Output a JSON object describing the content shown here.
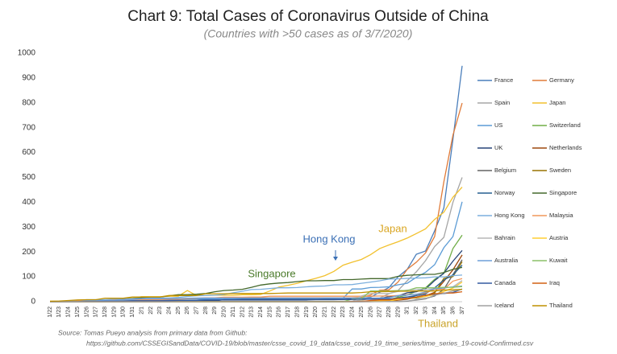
{
  "chart_data": {
    "type": "line",
    "title": "Chart 9: Total Cases of Coronavirus Outside of China",
    "subtitle": "(Countries with >50 cases as of 3/7/2020)",
    "source": [
      "Source: Tomas Pueyo analysis from primary data from Github:",
      "https://github.com/CSSEGISandData/COVID-19/blob/master/csse_covid_19_data/csse_covid_19_time_series/time_series_19-covid-Confirmed.csv"
    ],
    "annotations": [
      {
        "text": "Japan",
        "color": "#d9a520"
      },
      {
        "text": "Hong Kong",
        "color": "#3a6fb5"
      },
      {
        "text": "Singapore",
        "color": "#4a7a2a"
      },
      {
        "text": "Thailand",
        "color": "#c9a227"
      }
    ],
    "ylim": [
      0,
      1000
    ],
    "yticks": [
      0,
      100,
      200,
      300,
      400,
      500,
      600,
      700,
      800,
      900,
      1000
    ],
    "grid": false,
    "categories": [
      "1/22",
      "1/23",
      "1/24",
      "1/25",
      "1/26",
      "1/27",
      "1/28",
      "1/29",
      "1/30",
      "1/31",
      "2/1",
      "2/2",
      "2/3",
      "2/4",
      "2/5",
      "2/6",
      "2/7",
      "2/8",
      "2/9",
      "2/10",
      "2/11",
      "2/12",
      "2/13",
      "2/14",
      "2/15",
      "2/16",
      "2/17",
      "2/18",
      "2/19",
      "2/20",
      "2/21",
      "2/22",
      "2/23",
      "2/24",
      "2/25",
      "2/26",
      "2/27",
      "2/28",
      "2/29",
      "3/1",
      "3/2",
      "3/3",
      "3/4",
      "3/5",
      "3/6",
      "3/7"
    ],
    "series": [
      {
        "name": "France",
        "color": "#4a7ebb",
        "values": [
          0,
          0,
          2,
          3,
          3,
          3,
          4,
          5,
          5,
          5,
          6,
          6,
          6,
          6,
          6,
          6,
          6,
          11,
          11,
          11,
          11,
          11,
          11,
          11,
          12,
          12,
          12,
          12,
          12,
          12,
          12,
          12,
          12,
          12,
          14,
          18,
          38,
          57,
          100,
          130,
          191,
          204,
          285,
          377,
          653,
          949
        ]
      },
      {
        "name": "Germany",
        "color": "#e07b39",
        "values": [
          0,
          0,
          0,
          0,
          0,
          1,
          4,
          4,
          4,
          5,
          8,
          10,
          12,
          12,
          12,
          12,
          13,
          13,
          14,
          14,
          16,
          16,
          16,
          16,
          16,
          16,
          16,
          16,
          16,
          16,
          16,
          16,
          16,
          16,
          17,
          27,
          46,
          48,
          79,
          130,
          159,
          196,
          262,
          482,
          670,
          799
        ]
      },
      {
        "name": "Spain",
        "color": "#a5a5a5",
        "values": [
          0,
          0,
          0,
          0,
          0,
          0,
          0,
          0,
          0,
          0,
          1,
          1,
          1,
          1,
          1,
          1,
          1,
          1,
          1,
          2,
          2,
          2,
          2,
          2,
          2,
          2,
          2,
          2,
          2,
          2,
          2,
          2,
          2,
          2,
          6,
          13,
          15,
          32,
          45,
          84,
          120,
          165,
          222,
          259,
          400,
          500
        ]
      },
      {
        "name": "Japan",
        "color": "#f2c12e",
        "values": [
          2,
          1,
          2,
          2,
          4,
          4,
          7,
          7,
          11,
          15,
          20,
          20,
          20,
          22,
          22,
          45,
          25,
          25,
          26,
          26,
          26,
          28,
          28,
          29,
          43,
          59,
          66,
          74,
          84,
          94,
          105,
          122,
          147,
          159,
          170,
          189,
          214,
          228,
          241,
          256,
          274,
          293,
          331,
          360,
          420,
          461
        ]
      },
      {
        "name": "US",
        "color": "#5b9bd5",
        "values": [
          1,
          1,
          2,
          2,
          5,
          5,
          5,
          5,
          5,
          7,
          8,
          8,
          11,
          11,
          11,
          11,
          11,
          11,
          11,
          11,
          12,
          12,
          13,
          13,
          13,
          13,
          13,
          13,
          13,
          13,
          15,
          15,
          15,
          51,
          51,
          57,
          58,
          60,
          68,
          74,
          98,
          118,
          149,
          217,
          262,
          402
        ]
      },
      {
        "name": "Switzerland",
        "color": "#70ad47",
        "values": [
          0,
          0,
          0,
          0,
          0,
          0,
          0,
          0,
          0,
          0,
          0,
          0,
          0,
          0,
          0,
          0,
          0,
          0,
          0,
          0,
          0,
          0,
          0,
          0,
          0,
          0,
          0,
          0,
          0,
          0,
          0,
          0,
          0,
          0,
          1,
          1,
          8,
          8,
          18,
          27,
          42,
          56,
          90,
          114,
          214,
          268
        ]
      },
      {
        "name": "UK",
        "color": "#264478",
        "values": [
          0,
          0,
          0,
          0,
          0,
          0,
          0,
          0,
          0,
          2,
          2,
          2,
          2,
          2,
          2,
          3,
          3,
          3,
          3,
          8,
          8,
          9,
          9,
          9,
          9,
          9,
          9,
          9,
          9,
          9,
          9,
          9,
          9,
          13,
          13,
          13,
          13,
          20,
          23,
          36,
          40,
          51,
          85,
          115,
          163,
          206
        ]
      },
      {
        "name": "Netherlands",
        "color": "#9e480e",
        "values": [
          0,
          0,
          0,
          0,
          0,
          0,
          0,
          0,
          0,
          0,
          0,
          0,
          0,
          0,
          0,
          0,
          0,
          0,
          0,
          0,
          0,
          0,
          0,
          0,
          0,
          0,
          0,
          0,
          0,
          0,
          0,
          0,
          0,
          0,
          0,
          0,
          1,
          1,
          6,
          10,
          18,
          24,
          38,
          82,
          128,
          188
        ]
      },
      {
        "name": "Belgium",
        "color": "#636363",
        "values": [
          0,
          0,
          0,
          0,
          0,
          0,
          0,
          0,
          0,
          0,
          0,
          0,
          0,
          1,
          1,
          1,
          1,
          1,
          1,
          1,
          1,
          1,
          1,
          1,
          1,
          1,
          1,
          1,
          1,
          1,
          1,
          1,
          1,
          1,
          1,
          1,
          1,
          1,
          1,
          2,
          8,
          13,
          23,
          50,
          109,
          169
        ]
      },
      {
        "name": "Sweden",
        "color": "#997300",
        "values": [
          0,
          0,
          0,
          0,
          0,
          0,
          0,
          0,
          0,
          1,
          1,
          1,
          1,
          1,
          1,
          1,
          1,
          1,
          1,
          1,
          1,
          1,
          1,
          1,
          1,
          1,
          1,
          1,
          1,
          1,
          1,
          1,
          1,
          1,
          1,
          2,
          7,
          7,
          12,
          14,
          15,
          21,
          35,
          94,
          101,
          161
        ]
      },
      {
        "name": "Norway",
        "color": "#255e91",
        "values": [
          0,
          0,
          0,
          0,
          0,
          0,
          0,
          0,
          0,
          0,
          0,
          0,
          0,
          0,
          0,
          0,
          0,
          0,
          0,
          0,
          0,
          0,
          0,
          0,
          0,
          0,
          0,
          0,
          0,
          0,
          0,
          0,
          0,
          0,
          0,
          1,
          1,
          6,
          15,
          19,
          25,
          32,
          56,
          87,
          108,
          147
        ]
      },
      {
        "name": "Singapore",
        "color": "#43682b",
        "values": [
          0,
          1,
          3,
          3,
          4,
          5,
          7,
          7,
          10,
          13,
          16,
          18,
          18,
          24,
          28,
          28,
          30,
          33,
          40,
          45,
          47,
          50,
          58,
          67,
          72,
          75,
          77,
          81,
          84,
          84,
          85,
          85,
          89,
          89,
          91,
          93,
          93,
          93,
          102,
          106,
          108,
          110,
          110,
          117,
          130,
          138
        ]
      },
      {
        "name": "Hong Kong",
        "color": "#7cafdd",
        "values": [
          0,
          2,
          2,
          5,
          8,
          8,
          8,
          10,
          10,
          12,
          13,
          15,
          15,
          15,
          17,
          21,
          24,
          25,
          26,
          29,
          36,
          42,
          49,
          50,
          53,
          56,
          56,
          57,
          60,
          62,
          63,
          68,
          68,
          69,
          74,
          79,
          84,
          91,
          92,
          94,
          95,
          96,
          100,
          100,
          105,
          107
        ]
      },
      {
        "name": "Malaysia",
        "color": "#f1975a",
        "values": [
          0,
          0,
          0,
          3,
          4,
          4,
          4,
          7,
          8,
          8,
          8,
          8,
          8,
          10,
          10,
          12,
          14,
          16,
          16,
          18,
          18,
          18,
          19,
          19,
          22,
          22,
          22,
          22,
          22,
          22,
          22,
          22,
          22,
          22,
          22,
          22,
          23,
          23,
          25,
          29,
          29,
          36,
          50,
          50,
          83,
          93
        ]
      },
      {
        "name": "Bahrain",
        "color": "#b7b7b7",
        "values": [
          0,
          0,
          0,
          0,
          0,
          0,
          0,
          0,
          0,
          0,
          0,
          0,
          0,
          0,
          0,
          0,
          0,
          0,
          0,
          0,
          0,
          0,
          0,
          0,
          0,
          0,
          0,
          0,
          0,
          0,
          0,
          0,
          0,
          1,
          23,
          33,
          33,
          33,
          41,
          47,
          49,
          49,
          52,
          55,
          60,
          85
        ]
      },
      {
        "name": "Austria",
        "color": "#ffcd33",
        "values": [
          0,
          0,
          0,
          0,
          0,
          0,
          0,
          0,
          0,
          0,
          0,
          0,
          0,
          0,
          0,
          0,
          0,
          0,
          0,
          0,
          0,
          0,
          0,
          0,
          0,
          0,
          0,
          0,
          0,
          0,
          0,
          0,
          0,
          0,
          2,
          2,
          3,
          3,
          9,
          14,
          18,
          21,
          29,
          41,
          55,
          79
        ]
      },
      {
        "name": "Australia",
        "color": "#6f9fd8",
        "values": [
          0,
          0,
          0,
          0,
          4,
          5,
          5,
          6,
          9,
          9,
          12,
          12,
          12,
          13,
          13,
          14,
          15,
          15,
          15,
          15,
          15,
          15,
          15,
          15,
          15,
          15,
          15,
          15,
          15,
          15,
          15,
          15,
          15,
          15,
          15,
          15,
          15,
          15,
          25,
          27,
          30,
          39,
          52,
          55,
          60,
          63
        ]
      },
      {
        "name": "Kuwait",
        "color": "#8cc168",
        "values": [
          0,
          0,
          0,
          0,
          0,
          0,
          0,
          0,
          0,
          0,
          0,
          0,
          0,
          0,
          0,
          0,
          0,
          0,
          0,
          0,
          0,
          0,
          0,
          0,
          0,
          0,
          0,
          0,
          0,
          0,
          0,
          0,
          0,
          11,
          12,
          43,
          43,
          43,
          45,
          45,
          56,
          56,
          56,
          58,
          58,
          61
        ]
      },
      {
        "name": "Canada",
        "color": "#335aa1",
        "values": [
          0,
          0,
          0,
          0,
          1,
          1,
          2,
          2,
          2,
          4,
          4,
          4,
          4,
          4,
          5,
          5,
          5,
          7,
          7,
          7,
          7,
          7,
          7,
          7,
          7,
          7,
          7,
          7,
          7,
          8,
          8,
          8,
          9,
          9,
          10,
          10,
          11,
          11,
          14,
          19,
          19,
          27,
          30,
          33,
          37,
          51
        ]
      },
      {
        "name": "Iraq",
        "color": "#d26012",
        "values": [
          0,
          0,
          0,
          0,
          0,
          0,
          0,
          0,
          0,
          0,
          0,
          0,
          0,
          0,
          0,
          0,
          0,
          0,
          0,
          0,
          0,
          0,
          0,
          0,
          0,
          0,
          0,
          0,
          0,
          0,
          0,
          0,
          0,
          1,
          1,
          5,
          7,
          7,
          13,
          13,
          19,
          26,
          32,
          35,
          35,
          40
        ]
      },
      {
        "name": "Iceland",
        "color": "#a0a0a0",
        "values": [
          0,
          0,
          0,
          0,
          0,
          0,
          0,
          0,
          0,
          0,
          0,
          0,
          0,
          0,
          0,
          0,
          0,
          0,
          0,
          0,
          0,
          0,
          0,
          0,
          0,
          0,
          0,
          0,
          0,
          0,
          0,
          0,
          0,
          0,
          0,
          0,
          0,
          1,
          1,
          3,
          6,
          11,
          26,
          34,
          43,
          50
        ]
      },
      {
        "name": "Thailand",
        "color": "#bf9000",
        "values": [
          2,
          3,
          5,
          7,
          8,
          8,
          14,
          14,
          14,
          19,
          19,
          19,
          19,
          25,
          25,
          25,
          25,
          32,
          32,
          32,
          33,
          33,
          33,
          33,
          33,
          34,
          35,
          35,
          35,
          35,
          35,
          35,
          35,
          35,
          37,
          40,
          40,
          41,
          42,
          42,
          43,
          43,
          43,
          47,
          48,
          50
        ]
      }
    ]
  }
}
